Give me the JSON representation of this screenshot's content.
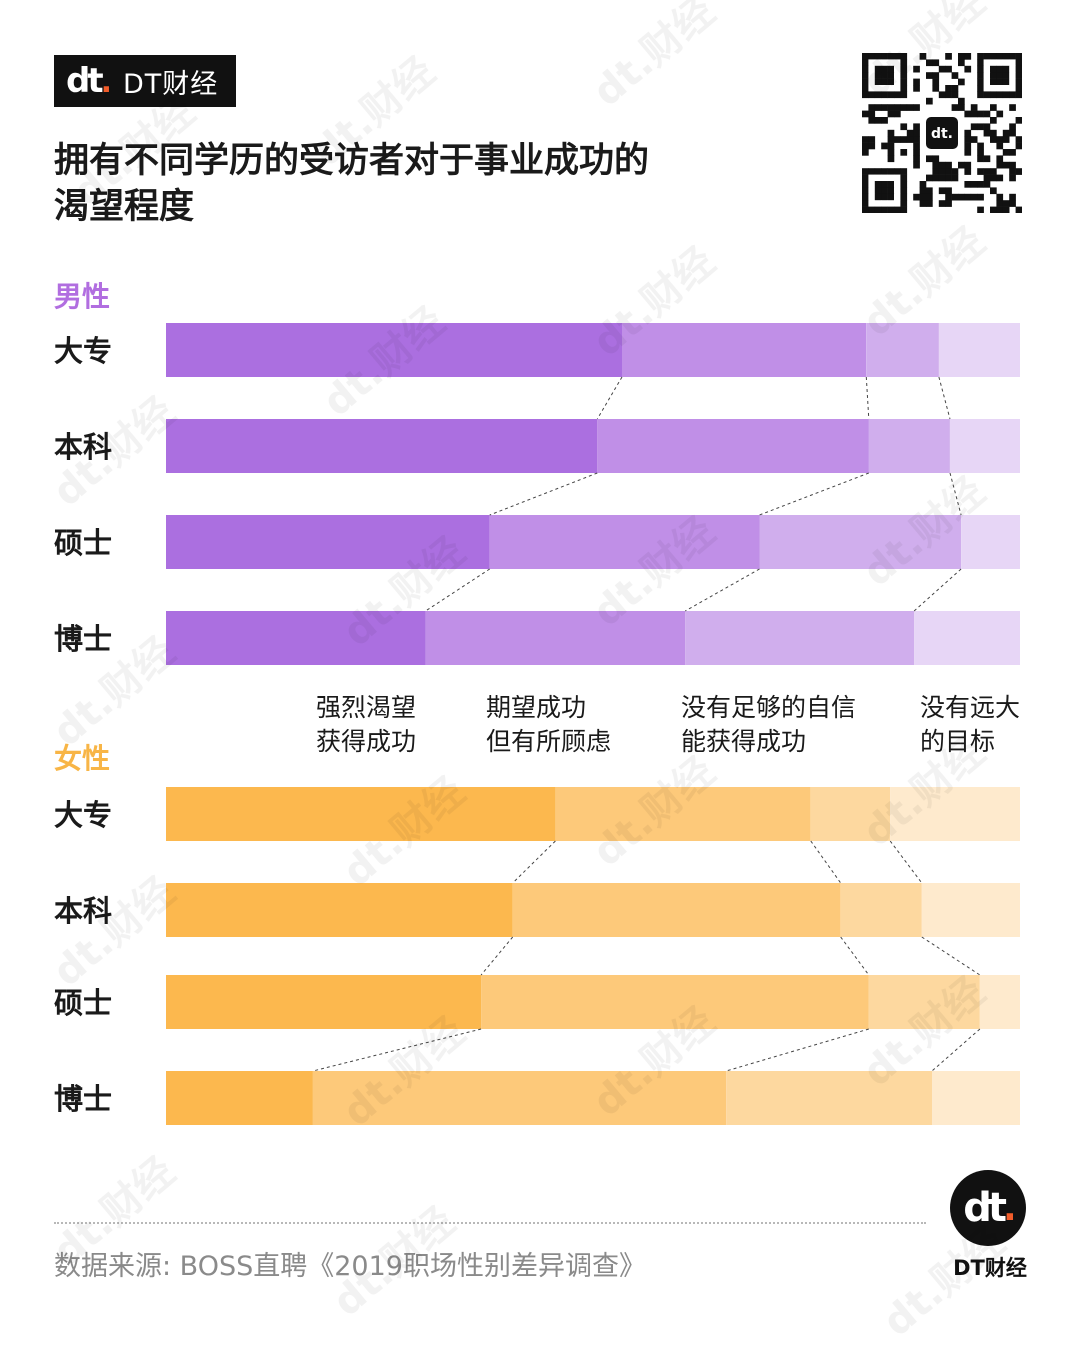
{
  "brand": {
    "logo_text": "dt",
    "name": "DT财经"
  },
  "title": "拥有不同学历的受访者对于事业成功的\n渴望程度",
  "source": "数据来源: BOSS直聘《2019职场性别差异调查》",
  "footer_brand": {
    "logo_text": "dt",
    "name": "DT财经"
  },
  "watermark_text": "dt.财经",
  "chart_data": {
    "type": "bar",
    "orientation": "horizontal-100%-stacked",
    "categories": [
      "大专",
      "本科",
      "硕士",
      "博士"
    ],
    "legend": [
      "强烈渴望\n获得成功",
      "期望成功\n但有所顾虑",
      "没有足够的自信\n能获得成功",
      "没有远大\n的目标"
    ],
    "panels": [
      {
        "name": "男性",
        "colors": [
          "#ab6fe0",
          "#c08fe7",
          "#d0aeed",
          "#e7d6f6"
        ],
        "series": [
          {
            "name": "强烈渴望获得成功",
            "values": [
              53.4,
              50.5,
              37.9,
              30.4
            ]
          },
          {
            "name": "期望成功但有所顾虑",
            "values": [
              28.6,
              31.8,
              31.6,
              30.4
            ]
          },
          {
            "name": "没有足够的自信能获得成功",
            "values": [
              8.5,
              9.5,
              23.6,
              26.8
            ]
          },
          {
            "name": "没有远大的目标",
            "values": [
              9.5,
              8.2,
              6.9,
              12.4
            ]
          }
        ]
      },
      {
        "name": "女性",
        "colors": [
          "#fcb84e",
          "#fdc97a",
          "#fdd89f",
          "#feeacd"
        ],
        "series": [
          {
            "name": "强烈渴望获得成功",
            "values": [
              45.6,
              40.6,
              36.9,
              17.2
            ]
          },
          {
            "name": "期望成功但有所顾虑",
            "values": [
              29.9,
              38.4,
              45.4,
              48.4
            ]
          },
          {
            "name": "没有足够的自信能获得成功",
            "values": [
              9.3,
              9.5,
              13.0,
              24.1
            ]
          },
          {
            "name": "没有远大的目标",
            "values": [
              15.2,
              11.5,
              4.7,
              10.3
            ]
          }
        ]
      }
    ],
    "xlim": [
      0,
      100
    ]
  }
}
